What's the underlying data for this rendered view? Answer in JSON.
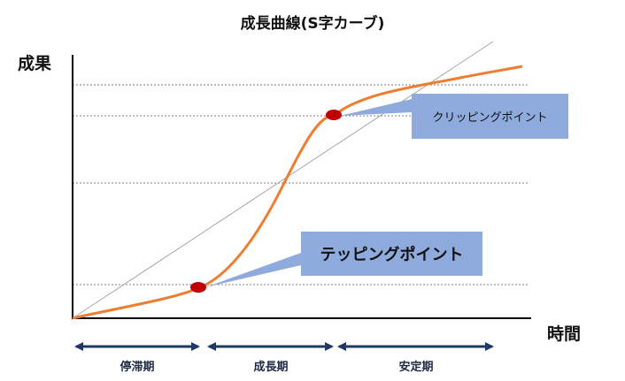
{
  "title": "成長曲線(S字カーブ)",
  "y_axis_label": "成果",
  "x_axis_label": "時間",
  "callouts": {
    "clipping_point": "クリッピングポイント",
    "tipping_point": "テッピングポイント"
  },
  "phases": [
    {
      "label": "停滞期"
    },
    {
      "label": "成長期"
    },
    {
      "label": "安定期"
    }
  ],
  "colors": {
    "curve": "#ed7d31",
    "point": "#c00000",
    "callout": "#8faadc",
    "arrow": "#1f3864",
    "gridline": "#7f7f7f",
    "reference_line": "#a6a6a6"
  }
}
